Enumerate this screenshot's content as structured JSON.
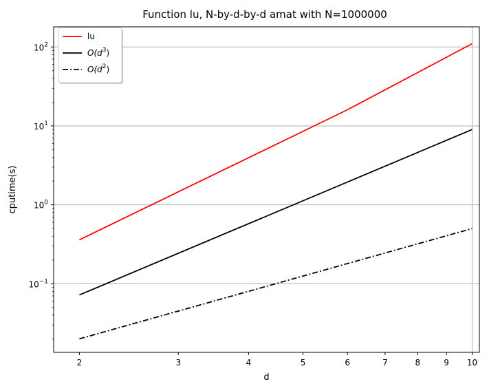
{
  "chart_data": {
    "type": "line",
    "title": "Function lu, N-by-d-by-d amat with N=1000000",
    "xlabel": "d",
    "ylabel": "cputime(s)",
    "xscale": "log",
    "yscale": "log",
    "xlim": [
      1.8,
      10.3
    ],
    "ylim": [
      0.0135,
      180
    ],
    "x_ticks": [
      2,
      3,
      4,
      5,
      6,
      7,
      8,
      9,
      10
    ],
    "x_tick_labels": [
      "2",
      "3",
      "4",
      "5",
      "6",
      "7",
      "8",
      "9",
      "10"
    ],
    "y_ticks": [
      {
        "value": 100,
        "base": "10",
        "exp": "2"
      },
      {
        "value": 10,
        "base": "10",
        "exp": "1"
      },
      {
        "value": 1,
        "base": "10",
        "exp": "0"
      },
      {
        "value": 0.1,
        "base": "10",
        "exp": "−1"
      }
    ],
    "grid": "major",
    "legend_position": "top-left",
    "series": [
      {
        "name": "lu",
        "color": "#ff0000",
        "dash": "solid",
        "x": [
          2,
          6,
          10
        ],
        "y": [
          0.36,
          16,
          110
        ]
      },
      {
        "name": "O(d3)",
        "name_parts": {
          "prefix": "O(d",
          "sup": "3",
          "suffix": ")"
        },
        "color": "#000000",
        "dash": "solid",
        "x": [
          2,
          10
        ],
        "y": [
          0.072,
          9.0
        ]
      },
      {
        "name": "O(d2)",
        "name_parts": {
          "prefix": "O(d",
          "sup": "2",
          "suffix": ")"
        },
        "color": "#000000",
        "dash": "dashdot",
        "x": [
          2,
          10
        ],
        "y": [
          0.02,
          0.5
        ]
      }
    ]
  }
}
